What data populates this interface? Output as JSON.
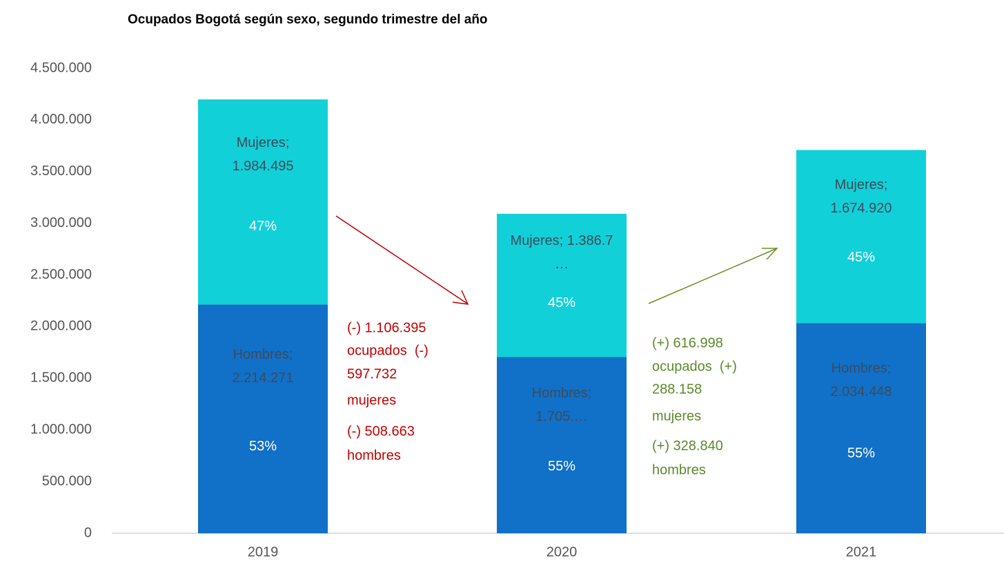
{
  "chart_data": {
    "type": "stacked_bar",
    "title": "Ocupados Bogotá según sexo, segundo trimestre del año",
    "categories": [
      "2019",
      "2020",
      "2021"
    ],
    "series": [
      {
        "name": "Hombres",
        "color": "#1170c8",
        "values": [
          2214271,
          1705608,
          2034448
        ],
        "value_labels": [
          "Hombres; 2.214.271",
          "Hombres; 1.705.…",
          "Hombres; 2.034.448"
        ],
        "share_labels": [
          "53%",
          "55%",
          "55%"
        ]
      },
      {
        "name": "Mujeres",
        "color": "#12d0d8",
        "values": [
          1984495,
          1386763,
          1674920
        ],
        "value_labels": [
          "Mujeres; 1.984.495",
          "Mujeres; 1.386.7 …",
          "Mujeres; 1.674.920"
        ],
        "share_labels": [
          "47%",
          "45%",
          "45%"
        ]
      }
    ],
    "ylim": [
      0,
      4500000
    ],
    "yticks": [
      0,
      {
        "value": 500000,
        "label": "500.000"
      },
      {
        "value": 1000000,
        "label": "1.000.000"
      },
      {
        "value": 1500000,
        "label": "1.500.000"
      },
      {
        "value": 2000000,
        "label": "2.000.000"
      },
      {
        "value": 2500000,
        "label": "2.500.000"
      },
      {
        "value": 3000000,
        "label": "3.000.000"
      },
      {
        "value": 3500000,
        "label": "3.500.000"
      },
      {
        "value": 4000000,
        "label": "4.000.000"
      },
      {
        "value": 4500000,
        "label": "4.500.000"
      }
    ],
    "grid": false,
    "annotations": [
      {
        "color": "#c00000",
        "lines": [
          "(-) 1.106.395",
          "ocupados  (-)",
          "597.732",
          "mujeres",
          "(-) 508.663",
          "hombres"
        ]
      },
      {
        "color": "#5a8a2a",
        "lines": [
          "(+) 616.998",
          "ocupados  (+)",
          "288.158",
          "mujeres",
          "(+) 328.840",
          "hombres"
        ]
      }
    ]
  }
}
